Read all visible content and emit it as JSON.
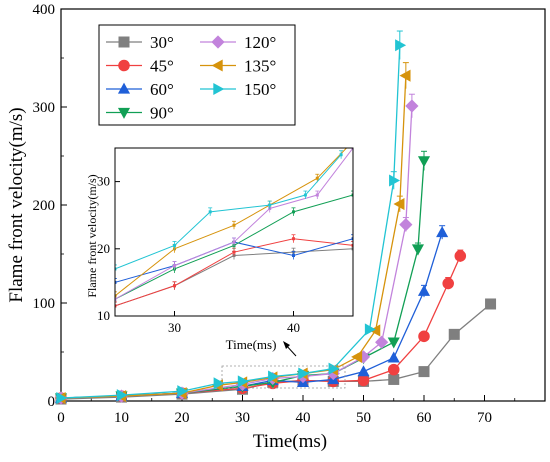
{
  "chart_data": [
    {
      "type": "line",
      "xlabel": "Time(ms)",
      "ylabel": "Flame front velocity(m/s)",
      "xlim": [
        0,
        80
      ],
      "ylim": [
        0,
        400
      ],
      "xticks": [
        0,
        10,
        20,
        30,
        40,
        50,
        60,
        70
      ],
      "yticks": [
        0,
        100,
        200,
        300,
        400
      ],
      "legend_position": "top-left",
      "series": [
        {
          "name": "30°",
          "color": "#7f7f7f",
          "marker": "square",
          "x": [
            0,
            10,
            20,
            30,
            35,
            40,
            45,
            50,
            55,
            60,
            65,
            71
          ],
          "y": [
            2,
            4,
            7,
            12,
            19,
            21,
            20,
            20,
            22,
            30,
            68,
            99
          ]
        },
        {
          "name": "45°",
          "color": "#f04040",
          "marker": "circle",
          "x": [
            0,
            10,
            20,
            30,
            35,
            40,
            45,
            50,
            55,
            60,
            64,
            66
          ],
          "y": [
            3,
            5,
            8,
            13,
            18,
            21,
            20,
            21,
            32,
            66,
            120,
            148
          ]
        },
        {
          "name": "60°",
          "color": "#1f5fd8",
          "marker": "triangle-up",
          "x": [
            0,
            10,
            20,
            30,
            35,
            40,
            45,
            50,
            55,
            60,
            63
          ],
          "y": [
            3,
            5,
            8,
            15,
            21,
            19,
            22,
            30,
            44,
            112,
            172
          ]
        },
        {
          "name": "90°",
          "color": "#119f55",
          "marker": "triangle-down",
          "x": [
            0,
            10,
            20,
            30,
            35,
            40,
            45,
            50,
            55,
            59,
            60
          ],
          "y": [
            3,
            5,
            8,
            15,
            19,
            26,
            28,
            44,
            60,
            155,
            245
          ]
        },
        {
          "name": "120°",
          "color": "#c283dc",
          "marker": "diamond",
          "x": [
            0,
            10,
            20,
            30,
            35,
            40,
            45,
            50,
            53,
            57,
            58
          ],
          "y": [
            3,
            5,
            8,
            17,
            23,
            25,
            28,
            45,
            60,
            180,
            301
          ]
        },
        {
          "name": "135°",
          "color": "#d6930c",
          "marker": "triangle-left",
          "x": [
            0,
            10,
            20,
            26,
            30,
            35,
            40,
            45,
            49,
            52,
            56,
            57
          ],
          "y": [
            3,
            5,
            8,
            16,
            19,
            24,
            28,
            32,
            45,
            72,
            201,
            332
          ]
        },
        {
          "name": "150°",
          "color": "#22c4d3",
          "marker": "triangle-right",
          "x": [
            0,
            10,
            20,
            26,
            30,
            35,
            40,
            45,
            51,
            55,
            56
          ],
          "y": [
            3,
            6,
            10,
            18,
            20,
            25,
            28,
            33,
            73,
            225,
            363
          ]
        }
      ]
    },
    {
      "type": "line",
      "xlabel": "Time(ms)",
      "ylabel": "Flame front velocity(m/s)",
      "xlim": [
        25,
        45
      ],
      "ylim": [
        10,
        35
      ],
      "xticks": [
        30,
        40
      ],
      "yticks": [
        10,
        20,
        30
      ],
      "series": [
        {
          "name": "30°",
          "color": "#7f7f7f",
          "x": [
            25,
            30,
            35,
            40,
            45
          ],
          "y": [
            11.5,
            14.5,
            19,
            19.5,
            20
          ]
        },
        {
          "name": "45°",
          "color": "#f04040",
          "x": [
            25,
            30,
            35,
            40,
            45
          ],
          "y": [
            11.5,
            14.5,
            19.5,
            21.5,
            20.5
          ]
        },
        {
          "name": "60°",
          "color": "#1f5fd8",
          "x": [
            25,
            30,
            35,
            40,
            45
          ],
          "y": [
            15,
            17.5,
            21,
            19,
            21.5
          ]
        },
        {
          "name": "90°",
          "color": "#119f55",
          "x": [
            25,
            30,
            35,
            40,
            45
          ],
          "y": [
            12.5,
            17,
            20.5,
            25.5,
            28
          ]
        },
        {
          "name": "120°",
          "color": "#c283dc",
          "x": [
            25,
            30,
            35,
            38,
            42,
            45
          ],
          "y": [
            12.5,
            17.5,
            21,
            26,
            28,
            35
          ]
        },
        {
          "name": "135°",
          "color": "#d6930c",
          "x": [
            25,
            30,
            35,
            38,
            42,
            45
          ],
          "y": [
            13,
            20,
            23.5,
            26.5,
            30.5,
            36
          ]
        },
        {
          "name": "150°",
          "color": "#22c4d3",
          "x": [
            25,
            30,
            33,
            38,
            41,
            44
          ],
          "y": [
            17,
            20.5,
            25.5,
            26.5,
            28,
            34
          ]
        }
      ]
    }
  ]
}
